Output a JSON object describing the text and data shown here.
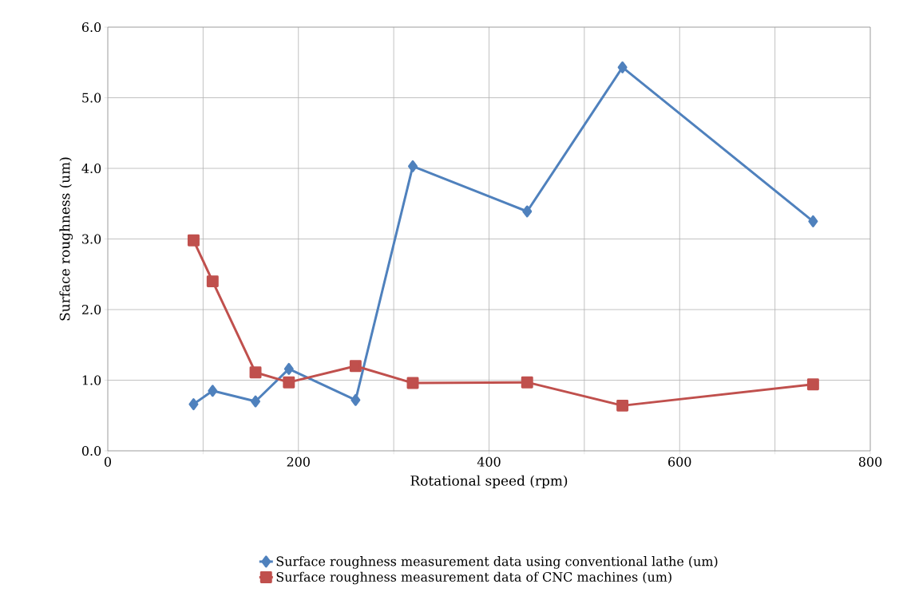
{
  "chart_data": {
    "type": "line",
    "xlabel": "Rotational speed (rpm)",
    "ylabel": "Surface roughness (um)",
    "xlim": [
      0,
      800
    ],
    "ylim": [
      0,
      6
    ],
    "xticks": [
      0,
      {
        "value": 100,
        "label": null
      },
      200,
      {
        "value": 300,
        "label": null
      },
      400,
      {
        "value": 500,
        "label": null
      },
      600,
      {
        "value": 700,
        "label": null
      },
      800
    ],
    "yticks": [
      {
        "value": 0,
        "label": "0.0"
      },
      {
        "value": 1,
        "label": "1.0"
      },
      {
        "value": 2,
        "label": "2.0"
      },
      {
        "value": 3,
        "label": "3.0"
      },
      {
        "value": 4,
        "label": "4.0"
      },
      {
        "value": 5,
        "label": "5.0"
      },
      {
        "value": 6,
        "label": "6.0"
      }
    ],
    "grid": true,
    "legend": "bottom",
    "line_style": "solid",
    "x": [
      90,
      110,
      155,
      190,
      260,
      320,
      440,
      540,
      740
    ],
    "series": [
      {
        "name": "Surface roughness measurement data using conventional lathe (um)",
        "color": "#4f81bd",
        "marker": "diamond",
        "values": [
          0.66,
          0.85,
          0.7,
          1.16,
          0.72,
          4.03,
          3.39,
          5.43,
          3.25
        ]
      },
      {
        "name": "Surface roughness measurement data of CNC machines (um)",
        "color": "#c0504d",
        "marker": "square",
        "values": [
          2.98,
          2.4,
          1.11,
          0.97,
          1.2,
          0.96,
          0.97,
          0.64,
          0.94
        ]
      }
    ]
  }
}
